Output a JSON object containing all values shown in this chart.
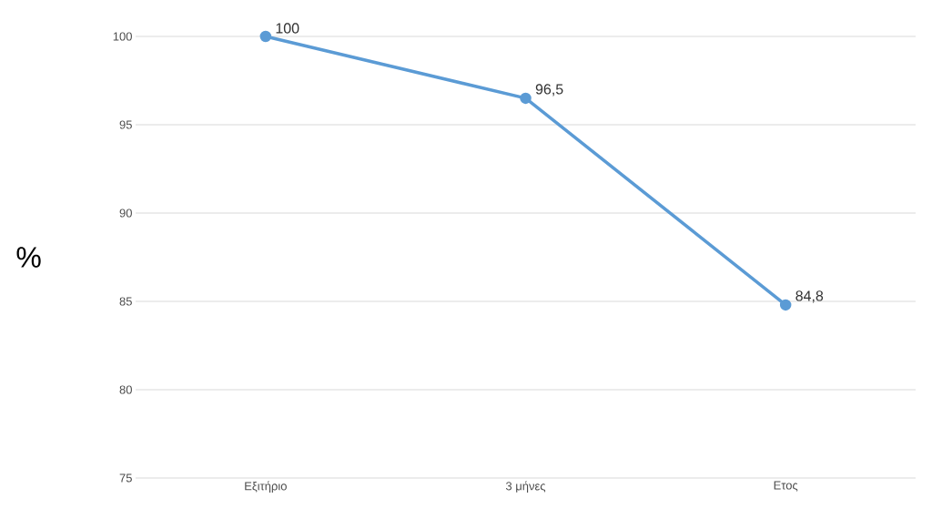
{
  "chart_data": {
    "type": "line",
    "ylabel": "%",
    "categories": [
      "Εξιτήριο",
      "3 μήνες",
      "Ετος"
    ],
    "series": [
      {
        "color": "#5b9bd5",
        "values": [
          100,
          96.5,
          84.8
        ],
        "value_labels": [
          "100",
          "96,5",
          "84,8"
        ]
      }
    ],
    "ylim": [
      75,
      100
    ],
    "yticks": [
      75,
      80,
      85,
      90,
      95,
      100
    ],
    "grid": "y",
    "marker": "circle",
    "line_style": "solid"
  }
}
